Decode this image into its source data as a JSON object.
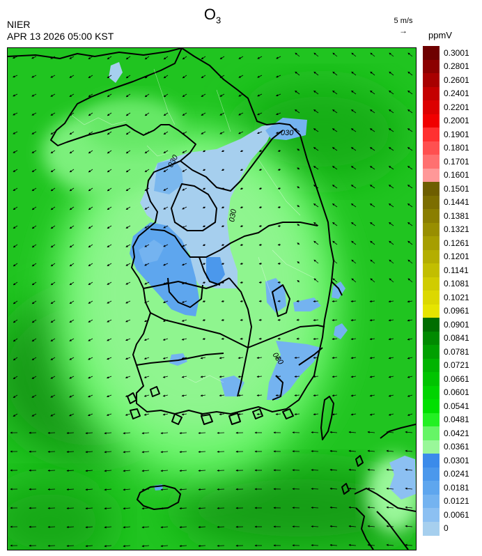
{
  "header": {
    "title_main": "O",
    "title_sub": "3",
    "agency": "NIER",
    "timestamp": "APR 13 2026 05:00 KST",
    "wind_reference": "5 m/s",
    "wind_arrow": "→",
    "unit": "ppmV"
  },
  "contour_labels": [
    "030",
    "030",
    "030",
    "030"
  ],
  "colorbar": {
    "labels": [
      "0.3001",
      "0.2801",
      "0.2601",
      "0.2401",
      "0.2201",
      "0.2001",
      "0.1901",
      "0.1801",
      "0.1701",
      "0.1601",
      "0.1501",
      "0.1441",
      "0.1381",
      "0.1321",
      "0.1261",
      "0.1201",
      "0.1141",
      "0.1081",
      "0.1021",
      "0.0961",
      "0.0901",
      "0.0841",
      "0.0781",
      "0.0721",
      "0.0661",
      "0.0601",
      "0.0541",
      "0.0481",
      "0.0421",
      "0.0361",
      "0.0301",
      "0.0241",
      "0.0181",
      "0.0121",
      "0.0061",
      "0"
    ],
    "colors": [
      "#6e0000",
      "#8c0000",
      "#a80000",
      "#c40000",
      "#dc0000",
      "#f00000",
      "#ff3030",
      "#ff5050",
      "#ff7070",
      "#ff9898",
      "#6e5e00",
      "#7c6e00",
      "#8a7e00",
      "#988e00",
      "#a69e00",
      "#b4ae00",
      "#c2be00",
      "#d0cc00",
      "#dcd800",
      "#e6e400",
      "#006e00",
      "#008a00",
      "#00a000",
      "#00b400",
      "#00c400",
      "#00d400",
      "#00e000",
      "#22f022",
      "#66f566",
      "#99f799",
      "#3b8bea",
      "#4b98ec",
      "#5ea6ee",
      "#74b3f0",
      "#8cc0f2",
      "#a6cfee"
    ]
  }
}
